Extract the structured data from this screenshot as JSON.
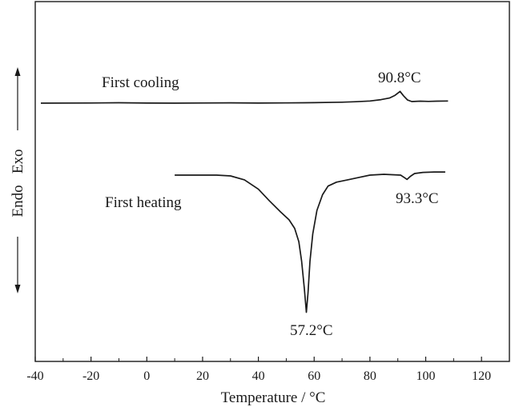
{
  "chart_data": {
    "type": "line",
    "xlabel": "Temperature / °C",
    "ylabel": "Endo   Exo",
    "xlim": [
      -40,
      130
    ],
    "x_ticks": [
      -40,
      -20,
      0,
      20,
      40,
      60,
      80,
      100,
      120
    ],
    "x_tick_labels": [
      "-40",
      "-20",
      "0",
      "20",
      "40",
      "60",
      "80",
      "100",
      "120"
    ],
    "grid": false,
    "y_ticks_shown": false,
    "series": [
      {
        "name": "First cooling",
        "points": [
          [
            -38,
            0.0
          ],
          [
            -20,
            0.02
          ],
          [
            -10,
            0.05
          ],
          [
            0,
            0.01
          ],
          [
            10,
            0.0
          ],
          [
            20,
            0.02
          ],
          [
            30,
            0.04
          ],
          [
            40,
            0.01
          ],
          [
            50,
            0.03
          ],
          [
            60,
            0.06
          ],
          [
            70,
            0.12
          ],
          [
            75,
            0.18
          ],
          [
            80,
            0.28
          ],
          [
            84,
            0.45
          ],
          [
            87,
            0.65
          ],
          [
            89,
            1.0
          ],
          [
            90.8,
            1.5
          ],
          [
            92,
            0.95
          ],
          [
            93.5,
            0.4
          ],
          [
            95,
            0.2
          ],
          [
            98,
            0.25
          ],
          [
            101,
            0.22
          ],
          [
            104,
            0.25
          ],
          [
            108,
            0.28
          ]
        ]
      },
      {
        "name": "First heating",
        "points": [
          [
            10,
            0.0
          ],
          [
            25,
            0.0
          ],
          [
            30,
            -0.1
          ],
          [
            35,
            -0.6
          ],
          [
            40,
            -1.8
          ],
          [
            44,
            -3.3
          ],
          [
            48,
            -4.7
          ],
          [
            51,
            -5.7
          ],
          [
            53,
            -6.8
          ],
          [
            54.5,
            -8.5
          ],
          [
            55.5,
            -11.0
          ],
          [
            56.5,
            -14.5
          ],
          [
            57.2,
            -17.5
          ],
          [
            57.8,
            -15.0
          ],
          [
            58.5,
            -11.0
          ],
          [
            59.5,
            -7.5
          ],
          [
            61,
            -4.5
          ],
          [
            63,
            -2.5
          ],
          [
            65,
            -1.4
          ],
          [
            68,
            -0.9
          ],
          [
            72,
            -0.6
          ],
          [
            76,
            -0.3
          ],
          [
            80,
            0.0
          ],
          [
            85,
            0.1
          ],
          [
            88,
            0.05
          ],
          [
            91,
            0.0
          ],
          [
            92.5,
            -0.35
          ],
          [
            93.3,
            -0.55
          ],
          [
            94.5,
            -0.15
          ],
          [
            96,
            0.2
          ],
          [
            99,
            0.35
          ],
          [
            103,
            0.4
          ],
          [
            107,
            0.4
          ]
        ]
      }
    ],
    "annotations": [
      {
        "text": "First cooling",
        "series": 0
      },
      {
        "text": "90.8°C",
        "series": 0
      },
      {
        "text": "First heating",
        "series": 1
      },
      {
        "text": "93.3°C",
        "series": 1
      },
      {
        "text": "57.2°C",
        "series": 1
      }
    ]
  }
}
